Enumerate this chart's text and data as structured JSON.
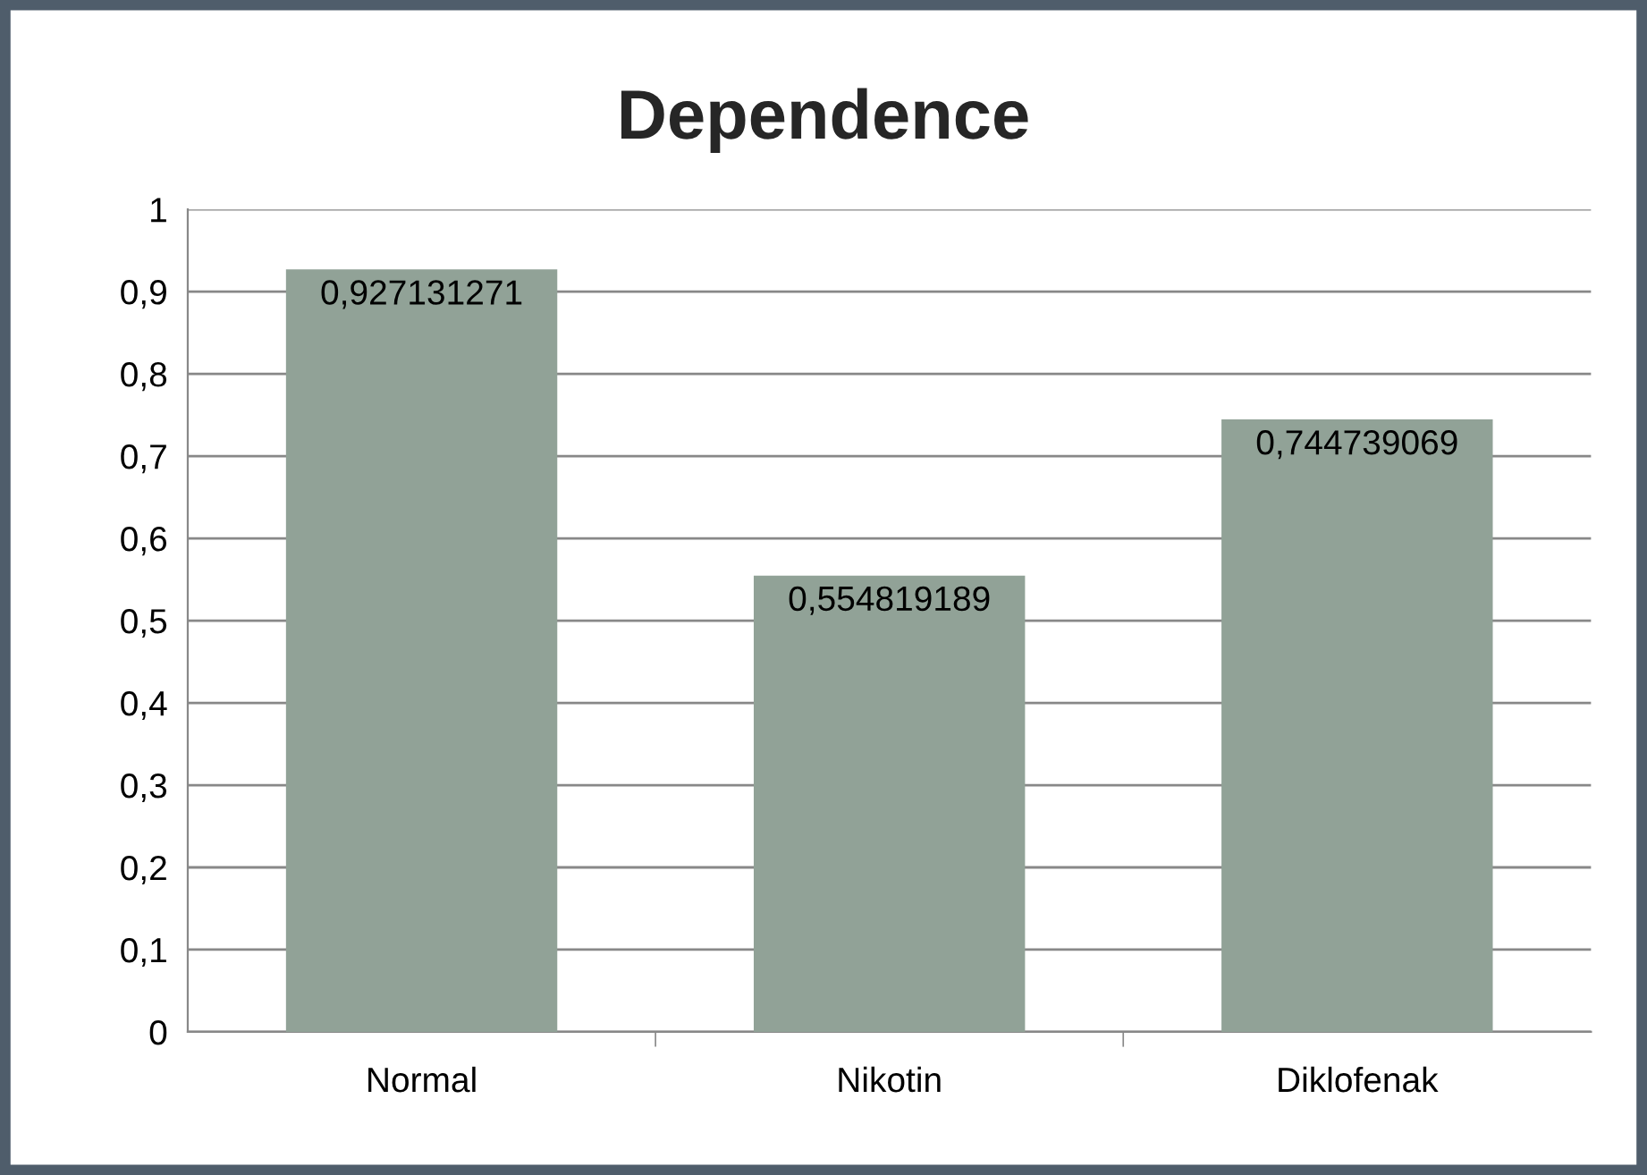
{
  "chart_data": {
    "type": "bar",
    "title": "Dependence",
    "categories": [
      "Normal",
      "Nikotin",
      "Diklofenak"
    ],
    "values": [
      0.927131271,
      0.554819189,
      0.744739069
    ],
    "value_labels": [
      "0,927131271",
      "0,554819189",
      "0,744739069"
    ],
    "color": "#91a297",
    "ylim": [
      0,
      1
    ],
    "yticks": [
      0,
      {
        "value": 0.1,
        "label": "0,1"
      },
      {
        "value": 0.2,
        "label": "0,2"
      },
      {
        "value": 0.3,
        "label": "0,3"
      },
      {
        "value": 0.4,
        "label": "0,4"
      },
      {
        "value": 0.5,
        "label": "0,5"
      },
      {
        "value": 0.6,
        "label": "0,6"
      },
      {
        "value": 0.7,
        "label": "0,7"
      },
      {
        "value": 0.8,
        "label": "0,8"
      },
      {
        "value": 0.9,
        "label": "0,9"
      },
      1
    ],
    "grid": "y",
    "legend": false
  }
}
